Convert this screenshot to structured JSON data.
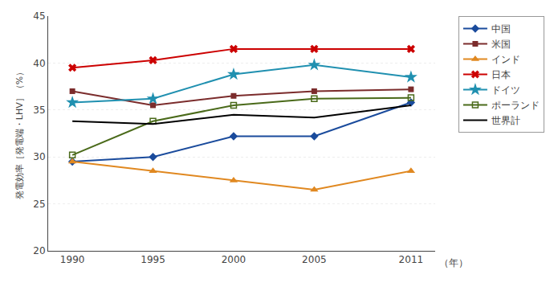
{
  "chart_data": {
    "type": "line",
    "x": [
      1990,
      1995,
      2000,
      2005,
      2011
    ],
    "xlim": [
      1988.5,
      2012.5
    ],
    "xticks": [
      1990,
      1995,
      2000,
      2005,
      2011
    ],
    "ylim": [
      20,
      45
    ],
    "yticks": [
      20,
      25,
      30,
      35,
      40,
      45
    ],
    "ylabel": "発電効率［発電端・LHV］（%）",
    "annotations": [
      "（年）"
    ],
    "grid": "y",
    "legend": "right",
    "series": [
      {
        "name": "中国",
        "color": "#1a4b9c",
        "marker": "diamond",
        "values": [
          29.5,
          30.0,
          32.2,
          32.2,
          35.8
        ]
      },
      {
        "name": "米国",
        "color": "#7b2c2c",
        "marker": "square",
        "values": [
          37.0,
          35.5,
          36.5,
          37.0,
          37.2
        ]
      },
      {
        "name": "インド",
        "color": "#e08820",
        "marker": "triangle-up",
        "values": [
          29.5,
          28.5,
          27.5,
          26.5,
          28.5
        ]
      },
      {
        "name": "日本",
        "color": "#cc0000",
        "marker": "x",
        "values": [
          39.5,
          40.3,
          41.5,
          41.5,
          41.5
        ]
      },
      {
        "name": "ドイツ",
        "color": "#2090b0",
        "marker": "star",
        "values": [
          35.8,
          36.2,
          38.8,
          39.8,
          38.5
        ]
      },
      {
        "name": "ポーランド",
        "color": "#4a6a1a",
        "marker": "square-open",
        "values": [
          30.2,
          33.8,
          35.5,
          36.2,
          36.3
        ]
      },
      {
        "name": "世界計",
        "color": "#000000",
        "marker": "none",
        "values": [
          33.8,
          33.5,
          34.5,
          34.2,
          35.5
        ]
      }
    ]
  }
}
